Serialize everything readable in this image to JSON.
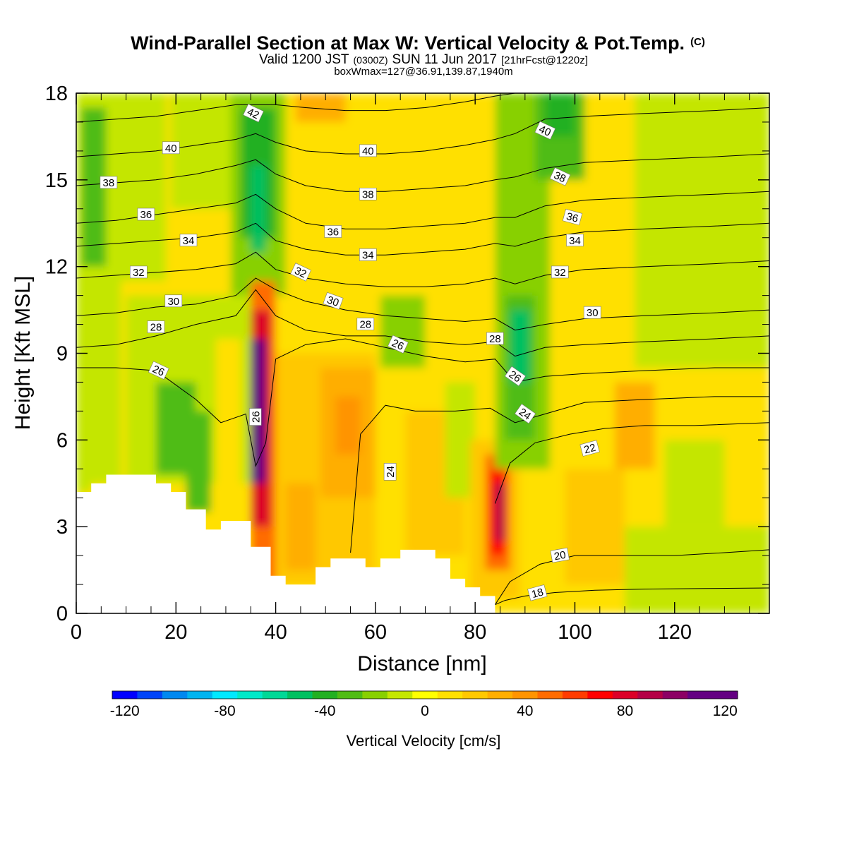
{
  "chart_data": {
    "type": "heatmap",
    "title": "Wind-Parallel Section at Max W: Vertical Velocity & Pot.Temp.",
    "title_mark": "(C)",
    "subtitle": {
      "valid_prefix": "Valid 1200 JST",
      "utc_time": "(0300Z)",
      "date": "SUN 11 Jun 2017",
      "forecast": "[21hrFcst@1220z]"
    },
    "box_note": "boxWmax=127@36.91,139.87,1940m",
    "xlabel": "Distance [nm]",
    "ylabel": "Height [Kft MSL]",
    "xlim": [
      0,
      139
    ],
    "ylim": [
      0,
      18
    ],
    "xticks": [
      0,
      20,
      40,
      60,
      80,
      100,
      120
    ],
    "yticks": [
      0,
      3,
      6,
      9,
      12,
      15,
      18
    ],
    "colorbar": {
      "label": "Vertical Velocity [cm/s]",
      "range": [
        -125,
        125
      ],
      "step": 10,
      "tick_labels": [
        -120,
        -80,
        -40,
        0,
        40,
        80,
        120
      ],
      "colors": [
        "#0000ff",
        "#0044f8",
        "#0088f0",
        "#00b4f0",
        "#00e8ff",
        "#00e8c8",
        "#00d896",
        "#00c060",
        "#22b022",
        "#50bc14",
        "#88d000",
        "#c4e600",
        "#ffff00",
        "#ffe000",
        "#ffc800",
        "#ffae00",
        "#ff9400",
        "#ff6c00",
        "#ff3c00",
        "#ff0000",
        "#dc0028",
        "#b40046",
        "#8c0064",
        "#640082"
      ]
    },
    "velocity_cells": [
      {
        "x0": 0,
        "x1": 139,
        "y0": 0,
        "y1": 18,
        "w": 5
      },
      {
        "x0": 0,
        "x1": 9,
        "y0": 4.5,
        "y1": 18,
        "w": -15
      },
      {
        "x0": 1,
        "x1": 6,
        "y0": 12,
        "y1": 17.5,
        "w": -35
      },
      {
        "x0": 0,
        "x1": 3,
        "y0": 4.2,
        "y1": 7.2,
        "w": -15
      },
      {
        "x0": 9,
        "x1": 18,
        "y0": 11.5,
        "y1": 18,
        "w": -15
      },
      {
        "x0": 10,
        "x1": 40,
        "y0": 4.5,
        "y1": 11,
        "w": -12
      },
      {
        "x0": 16,
        "x1": 24,
        "y0": 4.8,
        "y1": 8,
        "w": -28
      },
      {
        "x0": 22,
        "x1": 27,
        "y0": 3.5,
        "y1": 7,
        "w": -30
      },
      {
        "x0": 19,
        "x1": 33,
        "y0": 14,
        "y1": 18,
        "w": -12
      },
      {
        "x0": 28,
        "x1": 33,
        "y0": 3.3,
        "y1": 9.5,
        "w": 10
      },
      {
        "x0": 31,
        "x1": 42,
        "y0": 11,
        "y1": 18,
        "w": -25
      },
      {
        "x0": 33,
        "x1": 40,
        "y0": 13,
        "y1": 17.5,
        "w": -45
      },
      {
        "x0": 35,
        "x1": 38,
        "y0": 12.5,
        "y1": 15.5,
        "w": -55
      },
      {
        "x0": 44,
        "x1": 54,
        "y0": 17,
        "y1": 18,
        "w": 25
      },
      {
        "x0": 40,
        "x1": 60,
        "y0": 1,
        "y1": 9,
        "w": 15
      },
      {
        "x0": 49,
        "x1": 60,
        "y0": 4,
        "y1": 8.5,
        "w": 28
      },
      {
        "x0": 52,
        "x1": 57,
        "y0": 5.5,
        "y1": 7.5,
        "w": 35
      },
      {
        "x0": 42,
        "x1": 48,
        "y0": 1.5,
        "y1": 4.5,
        "w": 25
      },
      {
        "x0": 61,
        "x1": 70,
        "y0": 8.5,
        "y1": 11,
        "w": -18
      },
      {
        "x0": 60,
        "x1": 66,
        "y0": 2.5,
        "y1": 8,
        "w": 5
      },
      {
        "x0": 66,
        "x1": 78,
        "y0": 2,
        "y1": 7,
        "w": 15
      },
      {
        "x0": 74,
        "x1": 80,
        "y0": 4,
        "y1": 8,
        "w": -12
      },
      {
        "x0": 79,
        "x1": 89,
        "y0": 0.5,
        "y1": 6,
        "w": 20
      },
      {
        "x0": 82,
        "x1": 87,
        "y0": 1.5,
        "y1": 5.5,
        "w": 45
      },
      {
        "x0": 83,
        "x1": 86,
        "y0": 2,
        "y1": 5,
        "w": 70
      },
      {
        "x0": 84,
        "x1": 86,
        "y0": 2.5,
        "y1": 4.5,
        "w": 85
      },
      {
        "x0": 84,
        "x1": 95,
        "y0": 5,
        "y1": 18,
        "w": -18
      },
      {
        "x0": 86,
        "x1": 92,
        "y0": 6,
        "y1": 11,
        "w": -35
      },
      {
        "x0": 87,
        "x1": 91,
        "y0": 8,
        "y1": 10.5,
        "w": -48
      },
      {
        "x0": 92,
        "x1": 102,
        "y0": 15,
        "y1": 18,
        "w": -30
      },
      {
        "x0": 94,
        "x1": 100,
        "y0": 16.5,
        "y1": 18,
        "w": -45
      },
      {
        "x0": 98,
        "x1": 110,
        "y0": 1,
        "y1": 5,
        "w": 15
      },
      {
        "x0": 108,
        "x1": 116,
        "y0": 5,
        "y1": 8,
        "w": 30
      },
      {
        "x0": 112,
        "x1": 139,
        "y0": 8.5,
        "y1": 18,
        "w": -12
      },
      {
        "x0": 118,
        "x1": 130,
        "y0": 3,
        "y1": 6,
        "w": -12
      },
      {
        "x0": 110,
        "x1": 139,
        "y0": 0,
        "y1": 3,
        "w": -12
      },
      {
        "x0": 126,
        "x1": 139,
        "y0": 13,
        "y1": 18,
        "w": -15
      },
      {
        "x0": 35,
        "x1": 40,
        "y0": 0.5,
        "y1": 11.5,
        "w": 45
      },
      {
        "x0": 35,
        "x1": 39,
        "y0": 3,
        "y1": 10.5,
        "w": 75
      },
      {
        "x0": 35,
        "x1": 38,
        "y0": 4.5,
        "y1": 9.5,
        "w": 105
      },
      {
        "x0": 35,
        "x1": 37,
        "y0": 5.5,
        "y1": 8.5,
        "w": 127
      }
    ],
    "terrain": {
      "x": [
        0,
        3,
        3,
        6,
        6,
        16,
        16,
        19,
        19,
        22,
        22,
        26,
        26,
        29,
        29,
        35,
        35,
        39,
        39,
        42,
        42,
        48,
        48,
        51,
        51,
        58,
        58,
        61,
        61,
        65,
        65,
        72,
        72,
        75,
        75,
        78,
        78,
        81,
        81,
        84,
        84
      ],
      "y": [
        4.2,
        4.2,
        4.5,
        4.5,
        4.8,
        4.8,
        4.5,
        4.5,
        4.2,
        4.2,
        3.6,
        3.6,
        2.9,
        2.9,
        3.2,
        3.2,
        2.3,
        2.3,
        1.3,
        1.3,
        1.0,
        1.0,
        1.6,
        1.6,
        1.9,
        1.9,
        1.6,
        1.6,
        1.9,
        1.9,
        2.2,
        2.2,
        1.9,
        1.9,
        1.2,
        1.2,
        0.9,
        0.9,
        0.6,
        0.6,
        0.3
      ]
    },
    "theta_contours": [
      {
        "level": 18,
        "x": [
          84,
          86,
          90,
          96,
          104,
          114,
          126,
          139
        ],
        "y": [
          0.3,
          0.45,
          0.6,
          0.72,
          0.8,
          0.84,
          0.86,
          0.88
        ]
      },
      {
        "level": 20,
        "x": [
          84,
          87,
          93,
          100,
          110,
          120,
          130,
          139
        ],
        "y": [
          0.3,
          1.1,
          1.7,
          2.0,
          2.0,
          2.0,
          2.1,
          2.2
        ]
      },
      {
        "level": 22,
        "x": [
          84,
          87,
          92,
          99,
          106,
          114,
          124,
          139
        ],
        "y": [
          3.8,
          5.2,
          5.9,
          6.2,
          6.4,
          6.5,
          6.5,
          6.6
        ]
      },
      {
        "level": 24,
        "x": [
          55,
          57,
          62,
          68,
          76,
          83,
          88,
          94,
          102,
          114,
          128,
          139
        ],
        "y": [
          2.1,
          6.2,
          7.2,
          7.0,
          7.0,
          7.1,
          6.6,
          6.9,
          7.3,
          7.4,
          7.5,
          7.5
        ]
      },
      {
        "level": 26,
        "x": [
          0,
          8,
          16,
          24,
          29,
          34,
          36,
          38,
          40,
          46,
          54,
          62,
          70,
          78,
          84,
          88,
          94,
          102,
          114,
          128,
          139
        ],
        "y": [
          8.5,
          8.5,
          8.4,
          7.4,
          6.6,
          6.9,
          5.1,
          5.9,
          8.8,
          9.3,
          9.5,
          9.2,
          8.9,
          8.7,
          8.8,
          8.0,
          8.2,
          8.3,
          8.4,
          8.5,
          8.5
        ]
      },
      {
        "level": 28,
        "x": [
          0,
          8,
          16,
          24,
          32,
          36,
          40,
          46,
          54,
          62,
          70,
          78,
          84,
          88,
          94,
          102,
          114,
          128,
          139
        ],
        "y": [
          9.2,
          9.3,
          9.6,
          10.0,
          10.3,
          11.2,
          10.3,
          9.8,
          9.6,
          9.6,
          9.4,
          9.3,
          9.4,
          8.9,
          9.2,
          9.3,
          9.4,
          9.5,
          9.6
        ]
      },
      {
        "level": 30,
        "x": [
          0,
          8,
          16,
          24,
          32,
          36,
          40,
          46,
          54,
          62,
          70,
          78,
          84,
          88,
          94,
          102,
          114,
          128,
          139
        ],
        "y": [
          10.3,
          10.4,
          10.6,
          10.7,
          11.0,
          11.6,
          11.2,
          10.8,
          10.5,
          10.3,
          10.2,
          10.1,
          10.2,
          9.8,
          10.0,
          10.2,
          10.3,
          10.4,
          10.5
        ]
      },
      {
        "level": 32,
        "x": [
          0,
          8,
          16,
          24,
          32,
          36,
          40,
          46,
          54,
          62,
          70,
          78,
          84,
          88,
          94,
          102,
          114,
          128,
          139
        ],
        "y": [
          11.6,
          11.7,
          11.8,
          11.9,
          12.1,
          12.5,
          11.9,
          11.6,
          11.4,
          11.3,
          11.3,
          11.4,
          11.6,
          11.4,
          11.7,
          11.9,
          12.0,
          12.1,
          12.2
        ]
      },
      {
        "level": 34,
        "x": [
          0,
          8,
          16,
          24,
          32,
          36,
          40,
          46,
          54,
          62,
          70,
          78,
          84,
          88,
          94,
          102,
          114,
          128,
          139
        ],
        "y": [
          12.7,
          12.8,
          12.9,
          13.0,
          13.2,
          13.5,
          12.9,
          12.6,
          12.4,
          12.4,
          12.5,
          12.6,
          12.8,
          12.7,
          13.0,
          13.2,
          13.3,
          13.4,
          13.5
        ]
      },
      {
        "level": 36,
        "x": [
          0,
          8,
          16,
          24,
          32,
          36,
          40,
          46,
          54,
          62,
          70,
          78,
          84,
          88,
          94,
          102,
          114,
          128,
          139
        ],
        "y": [
          13.5,
          13.6,
          13.8,
          14.0,
          14.2,
          14.5,
          14.0,
          13.5,
          13.3,
          13.3,
          13.4,
          13.5,
          13.7,
          13.7,
          14.1,
          14.3,
          14.4,
          14.5,
          14.6
        ]
      },
      {
        "level": 38,
        "x": [
          0,
          8,
          16,
          24,
          32,
          36,
          40,
          46,
          54,
          62,
          70,
          78,
          84,
          88,
          94,
          102,
          114,
          128,
          139
        ],
        "y": [
          14.8,
          14.9,
          15.0,
          15.2,
          15.5,
          15.7,
          15.2,
          14.8,
          14.6,
          14.6,
          14.7,
          14.8,
          15.0,
          15.1,
          15.4,
          15.6,
          15.7,
          15.8,
          15.9
        ]
      },
      {
        "level": 40,
        "x": [
          0,
          8,
          16,
          24,
          32,
          36,
          40,
          46,
          54,
          62,
          70,
          78,
          84,
          88,
          94,
          102,
          114,
          128,
          139
        ],
        "y": [
          15.8,
          15.9,
          16.0,
          16.2,
          16.4,
          16.6,
          16.3,
          16.0,
          15.9,
          15.9,
          16.0,
          16.2,
          16.4,
          16.6,
          17.1,
          17.2,
          17.3,
          17.4,
          17.5
        ]
      },
      {
        "level": 42,
        "x": [
          0,
          8,
          16,
          24,
          32,
          36,
          40,
          46,
          54,
          62,
          70,
          78,
          84,
          88,
          94,
          102,
          114,
          128,
          139
        ],
        "y": [
          17.0,
          17.1,
          17.2,
          17.4,
          17.6,
          17.6,
          17.6,
          17.5,
          17.4,
          17.4,
          17.5,
          17.7,
          17.9,
          18.0,
          18.0,
          18.0,
          18.0,
          18.0,
          18.0
        ]
      }
    ],
    "contour_labels": [
      {
        "text": "42",
        "x": 35.5,
        "y": 17.3,
        "rot": 25
      },
      {
        "text": "40",
        "x": 19,
        "y": 16.1,
        "rot": 0
      },
      {
        "text": "40",
        "x": 58.5,
        "y": 16.0,
        "rot": 0
      },
      {
        "text": "40",
        "x": 94,
        "y": 16.7,
        "rot": 25
      },
      {
        "text": "38",
        "x": 6.5,
        "y": 14.9,
        "rot": 0
      },
      {
        "text": "38",
        "x": 58.5,
        "y": 14.5,
        "rot": 0
      },
      {
        "text": "38",
        "x": 97,
        "y": 15.1,
        "rot": 25
      },
      {
        "text": "36",
        "x": 14,
        "y": 13.8,
        "rot": 0
      },
      {
        "text": "36",
        "x": 51.5,
        "y": 13.2,
        "rot": 0
      },
      {
        "text": "36",
        "x": 99.5,
        "y": 13.7,
        "rot": 15
      },
      {
        "text": "34",
        "x": 22.5,
        "y": 12.9,
        "rot": 0
      },
      {
        "text": "34",
        "x": 58.5,
        "y": 12.4,
        "rot": 0
      },
      {
        "text": "34",
        "x": 100,
        "y": 12.9,
        "rot": 0
      },
      {
        "text": "32",
        "x": 12.5,
        "y": 11.8,
        "rot": 0
      },
      {
        "text": "32",
        "x": 45,
        "y": 11.8,
        "rot": 25
      },
      {
        "text": "32",
        "x": 97,
        "y": 11.8,
        "rot": 0
      },
      {
        "text": "30",
        "x": 19.5,
        "y": 10.8,
        "rot": 0
      },
      {
        "text": "30",
        "x": 51.5,
        "y": 10.8,
        "rot": 20
      },
      {
        "text": "30",
        "x": 103.5,
        "y": 10.4,
        "rot": 0
      },
      {
        "text": "28",
        "x": 16,
        "y": 9.9,
        "rot": 0
      },
      {
        "text": "28",
        "x": 58,
        "y": 10.0,
        "rot": 0
      },
      {
        "text": "28",
        "x": 84,
        "y": 9.5,
        "rot": 0
      },
      {
        "text": "26",
        "x": 16.5,
        "y": 8.4,
        "rot": 25
      },
      {
        "text": "26",
        "x": 64.5,
        "y": 9.3,
        "rot": 25
      },
      {
        "text": "26",
        "x": 88,
        "y": 8.2,
        "rot": 35
      },
      {
        "text": "26",
        "x": 36,
        "y": 6.8,
        "rot": -90
      },
      {
        "text": "24",
        "x": 63,
        "y": 4.9,
        "rot": -90
      },
      {
        "text": "24",
        "x": 90,
        "y": 6.9,
        "rot": 35
      },
      {
        "text": "22",
        "x": 103,
        "y": 5.7,
        "rot": -15
      },
      {
        "text": "20",
        "x": 97,
        "y": 2.0,
        "rot": -10
      },
      {
        "text": "18",
        "x": 92.5,
        "y": 0.7,
        "rot": -15
      }
    ]
  }
}
